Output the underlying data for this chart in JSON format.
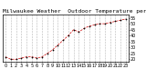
{
  "title": "Milwaukee Weather  Outdoor Temperature per Hour (Last 24 Hours)",
  "hours": [
    0,
    1,
    2,
    3,
    4,
    5,
    6,
    7,
    8,
    9,
    10,
    11,
    12,
    13,
    14,
    15,
    16,
    17,
    18,
    19,
    20,
    21,
    22,
    23
  ],
  "temps": [
    22,
    20,
    20,
    21,
    22,
    22,
    21,
    22,
    25,
    28,
    32,
    36,
    40,
    45,
    43,
    46,
    48,
    49,
    50,
    50,
    51,
    52,
    53,
    54
  ],
  "line_color": "#cc0000",
  "marker_color": "#000000",
  "background_color": "#ffffff",
  "grid_color": "#999999",
  "title_color": "#000000",
  "title_fontsize": 4.5,
  "tick_fontsize": 3.5,
  "ylim": [
    18,
    58
  ],
  "yticks": [
    20,
    25,
    30,
    35,
    40,
    45,
    50,
    55
  ],
  "ylabel": "",
  "xlabel": ""
}
